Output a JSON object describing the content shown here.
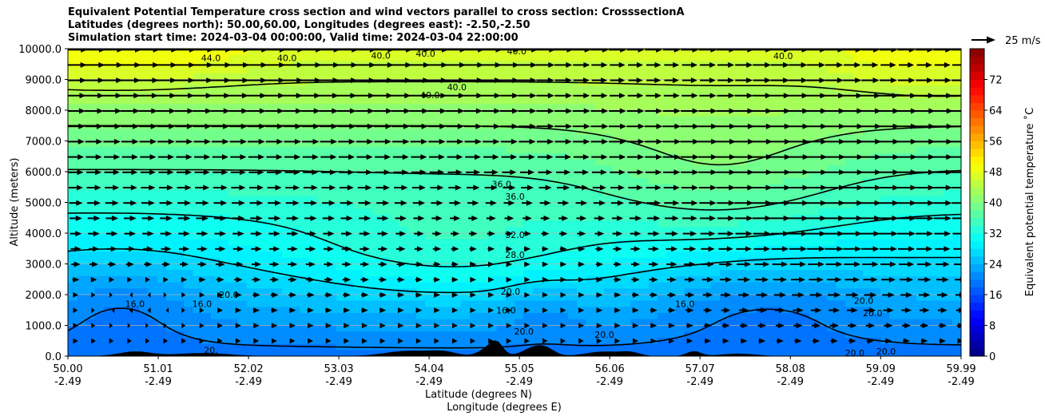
{
  "title_lines": [
    "Equivalent Potential Temperature cross section and wind vectors parallel to cross section: CrosssectionA",
    "Latitudes (degrees north): 50.00,60.00, Longitudes (degrees east): -2.50,-2.50",
    "Simulation start time: 2024-03-04 00:00:00, Valid time: 2024-03-04 22:00:00"
  ],
  "chart_data": {
    "type": "heatmap",
    "ylabel": "Altitude (meters)",
    "xlabel_lines": [
      "Latitude (degrees N)",
      "Longitude (degrees E)"
    ],
    "ylim": [
      0,
      10000
    ],
    "y_ticks": [
      0,
      1000,
      2000,
      3000,
      4000,
      5000,
      6000,
      7000,
      8000,
      9000,
      10000
    ],
    "y_tick_labels": [
      "0.0",
      "1000.0",
      "2000.0",
      "3000.0",
      "4000.0",
      "5000.0",
      "6000.0",
      "7000.0",
      "8000.0",
      "9000.0",
      "10000.0"
    ],
    "x_ticks": [
      {
        "lat": "50.00",
        "lon": "-2.49"
      },
      {
        "lat": "51.01",
        "lon": "-2.49"
      },
      {
        "lat": "52.02",
        "lon": "-2.49"
      },
      {
        "lat": "53.03",
        "lon": "-2.49"
      },
      {
        "lat": "54.04",
        "lon": "-2.49"
      },
      {
        "lat": "55.05",
        "lon": "-2.49"
      },
      {
        "lat": "56.06",
        "lon": "-2.49"
      },
      {
        "lat": "57.07",
        "lon": "-2.49"
      },
      {
        "lat": "58.08",
        "lon": "-2.49"
      },
      {
        "lat": "59.09",
        "lon": "-2.49"
      },
      {
        "lat": "59.99",
        "lon": "-2.49"
      }
    ],
    "xlim": [
      50.0,
      59.99
    ],
    "grid": "horizontal",
    "colorbar": {
      "label": "Equivalent potential temperature ˚C",
      "range": [
        0,
        80
      ],
      "ticks": [
        0,
        8,
        16,
        24,
        32,
        40,
        48,
        56,
        64,
        72
      ],
      "tick_labels": [
        "0",
        "8",
        "16",
        "24",
        "32",
        "40",
        "48",
        "56",
        "64",
        "72"
      ],
      "colormap": "jet"
    },
    "quiver_key": {
      "label": "25 m/s",
      "value": 25
    },
    "contour_levels": [
      16,
      20,
      28,
      32,
      36,
      40,
      44
    ],
    "contour_labels": [
      {
        "text": "44.0",
        "lat": 51.6,
        "z": 9700
      },
      {
        "text": "40.0",
        "lat": 52.45,
        "z": 9700
      },
      {
        "text": "40.0",
        "lat": 53.5,
        "z": 9780
      },
      {
        "text": "40.0",
        "lat": 54.0,
        "z": 9850
      },
      {
        "text": "40.0",
        "lat": 54.05,
        "z": 8500
      },
      {
        "text": "40.0",
        "lat": 54.35,
        "z": 8750
      },
      {
        "text": "40.0",
        "lat": 55.02,
        "z": 9920
      },
      {
        "text": "40.0",
        "lat": 58.0,
        "z": 9770
      },
      {
        "text": "36.0",
        "lat": 54.85,
        "z": 5600
      },
      {
        "text": "36.0",
        "lat": 55.0,
        "z": 5200
      },
      {
        "text": "32.0",
        "lat": 55.0,
        "z": 3950
      },
      {
        "text": "28.0",
        "lat": 55.0,
        "z": 3300
      },
      {
        "text": "20.0",
        "lat": 51.8,
        "z": 2000
      },
      {
        "text": "20.0",
        "lat": 54.95,
        "z": 2100
      },
      {
        "text": "20.0",
        "lat": 55.1,
        "z": 800
      },
      {
        "text": "20.0",
        "lat": 56.0,
        "z": 700
      },
      {
        "text": "20.0",
        "lat": 58.9,
        "z": 1800
      },
      {
        "text": "20.0",
        "lat": 59.0,
        "z": 1400
      },
      {
        "text": "20.0",
        "lat": 58.8,
        "z": 100
      },
      {
        "text": "20.0",
        "lat": 59.15,
        "z": 150
      },
      {
        "text": "20.",
        "lat": 51.6,
        "z": 200
      },
      {
        "text": "16.0",
        "lat": 50.75,
        "z": 1700
      },
      {
        "text": "16.0",
        "lat": 51.5,
        "z": 1700
      },
      {
        "text": "16.0",
        "lat": 54.9,
        "z": 1500
      },
      {
        "text": "16.0",
        "lat": 56.9,
        "z": 1700
      }
    ]
  }
}
